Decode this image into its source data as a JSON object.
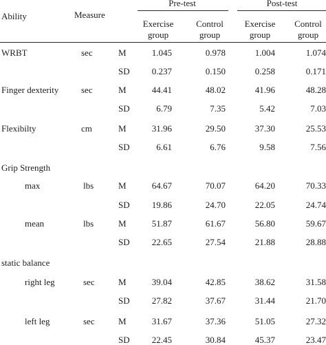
{
  "header": {
    "ability": "Ability",
    "measure": "Measure",
    "pre_test": "Pre-test",
    "post_test": "Post-test",
    "exercise_l1": "Exercise",
    "exercise_l2": "group",
    "control_l1": "Control",
    "control_l2": "group"
  },
  "rows": [
    {
      "ability": "WRBT",
      "unit": "sec",
      "stat": "M",
      "pre_ex": "1.045",
      "pre_ctrl": "0.978",
      "post_ex": "1.004",
      "post_ctrl": "1.074"
    },
    {
      "ability": "",
      "unit": "",
      "stat": "SD",
      "pre_ex": "0.237",
      "pre_ctrl": "0.150",
      "post_ex": "0.258",
      "post_ctrl": "0.171"
    },
    {
      "ability": "Finger dexterity",
      "unit": "sec",
      "stat": "M",
      "pre_ex": "44.41",
      "pre_ctrl": "48.02",
      "post_ex": "41.96",
      "post_ctrl": "48.28"
    },
    {
      "ability": "",
      "unit": "",
      "stat": "SD",
      "pre_ex": "6.79",
      "pre_ctrl": "7.35",
      "post_ex": "5.42",
      "post_ctrl": "7.03"
    },
    {
      "ability": "Flexibilty",
      "unit": "cm",
      "stat": "M",
      "pre_ex": "31.96",
      "pre_ctrl": "29.50",
      "post_ex": "37.30",
      "post_ctrl": "25.53"
    },
    {
      "ability": "",
      "unit": "",
      "stat": "SD",
      "pre_ex": "6.61",
      "pre_ctrl": "6.76",
      "post_ex": "9.58",
      "post_ctrl": "7.56"
    },
    {
      "ability": "Grip Strength",
      "unit": "",
      "stat": "",
      "pre_ex": "",
      "pre_ctrl": "",
      "post_ex": "",
      "post_ctrl": ""
    },
    {
      "ability": "max",
      "unit": "lbs",
      "stat": "M",
      "pre_ex": "64.67",
      "pre_ctrl": "70.07",
      "post_ex": "64.20",
      "post_ctrl": "70.33"
    },
    {
      "ability": "",
      "unit": "",
      "stat": "SD",
      "pre_ex": "19.86",
      "pre_ctrl": "24.70",
      "post_ex": "22.05",
      "post_ctrl": "24.74"
    },
    {
      "ability": "mean",
      "unit": "lbs",
      "stat": "M",
      "pre_ex": "51.87",
      "pre_ctrl": "61.67",
      "post_ex": "56.80",
      "post_ctrl": "59.67"
    },
    {
      "ability": "",
      "unit": "",
      "stat": "SD",
      "pre_ex": "22.65",
      "pre_ctrl": "27.54",
      "post_ex": "21.88",
      "post_ctrl": "28.88"
    },
    {
      "ability": "static balance",
      "unit": "",
      "stat": "",
      "pre_ex": "",
      "pre_ctrl": "",
      "post_ex": "",
      "post_ctrl": ""
    },
    {
      "ability": "right leg",
      "unit": "sec",
      "stat": "M",
      "pre_ex": "39.04",
      "pre_ctrl": "42.85",
      "post_ex": "38.62",
      "post_ctrl": "31.58"
    },
    {
      "ability": "",
      "unit": "",
      "stat": "SD",
      "pre_ex": "27.82",
      "pre_ctrl": "37.67",
      "post_ex": "31.44",
      "post_ctrl": "21.70"
    },
    {
      "ability": "left leg",
      "unit": "sec",
      "stat": "M",
      "pre_ex": "31.67",
      "pre_ctrl": "37.36",
      "post_ex": "51.05",
      "post_ctrl": "27.32"
    },
    {
      "ability": "",
      "unit": "",
      "stat": "SD",
      "pre_ex": "22.45",
      "pre_ctrl": "30.84",
      "post_ex": "45.37",
      "post_ctrl": "23.47"
    }
  ]
}
